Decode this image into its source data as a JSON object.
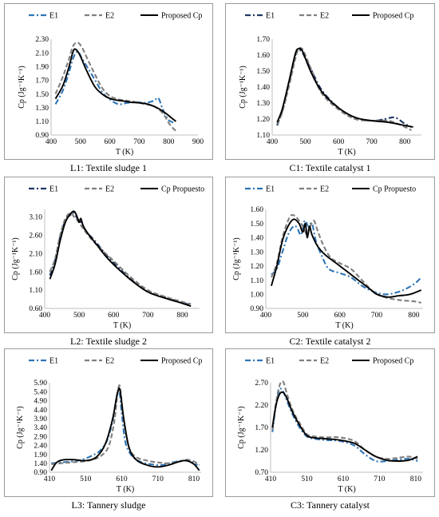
{
  "panels": [
    {
      "caption": "L1: Textile sludge 1",
      "chart_data": {
        "type": "line",
        "xlabel": "T (K)",
        "ylabel": "Cp (Jg⁻¹K⁻¹)",
        "xlim": [
          400,
          900
        ],
        "ylim": [
          0.9,
          2.3
        ],
        "xticks": [
          400,
          500,
          600,
          700,
          800,
          900
        ],
        "yticks": [
          0.9,
          1.1,
          1.3,
          1.5,
          1.7,
          1.9,
          2.1,
          2.3
        ],
        "yfmt": 2,
        "series": [
          {
            "name": "E1",
            "style": "dashdot",
            "color": "#2e75b6",
            "x": [
              415,
              440,
              460,
              475,
              490,
              505,
              525,
              550,
              575,
              600,
              630,
              660,
              690,
              720,
              750,
              765,
              780,
              800,
              820
            ],
            "y": [
              1.35,
              1.55,
              1.8,
              2.02,
              2.12,
              2.02,
              1.88,
              1.7,
              1.52,
              1.42,
              1.35,
              1.37,
              1.38,
              1.37,
              1.4,
              1.44,
              1.28,
              1.12,
              1.08
            ]
          },
          {
            "name": "E2",
            "style": "dashed",
            "color": "#7f7f7f",
            "x": [
              415,
              440,
              460,
              475,
              490,
              505,
              525,
              550,
              575,
              600,
              630,
              660,
              690,
              720,
              750,
              780,
              800,
              815,
              825
            ],
            "y": [
              1.5,
              1.75,
              2.0,
              2.2,
              2.25,
              2.18,
              2.0,
              1.78,
              1.58,
              1.47,
              1.42,
              1.4,
              1.38,
              1.35,
              1.32,
              1.22,
              1.08,
              1.0,
              0.96
            ]
          },
          {
            "name": "Proposed Cp",
            "style": "solid",
            "color": "#000000",
            "x": [
              415,
              440,
              460,
              475,
              485,
              500,
              520,
              550,
              580,
              610,
              640,
              670,
              700,
              730,
              760,
              790,
              810,
              825
            ],
            "y": [
              1.43,
              1.62,
              1.88,
              2.12,
              2.15,
              2.05,
              1.85,
              1.6,
              1.48,
              1.42,
              1.4,
              1.38,
              1.37,
              1.35,
              1.3,
              1.22,
              1.15,
              1.1
            ]
          }
        ]
      }
    },
    {
      "caption": "C1: Textile catalyst 1",
      "chart_data": {
        "type": "line",
        "xlabel": "T (K)",
        "ylabel": "Cp (Jg⁻¹K⁻¹)",
        "xlim": [
          400,
          850
        ],
        "ylim": [
          1.1,
          1.7
        ],
        "xticks": [
          400,
          500,
          600,
          700,
          800
        ],
        "yticks": [
          1.1,
          1.2,
          1.3,
          1.4,
          1.5,
          1.6,
          1.7
        ],
        "yfmt": 2,
        "series": [
          {
            "name": "E1",
            "style": "dashdot",
            "color": "#1f3864",
            "x": [
              415,
              430,
              450,
              470,
              480,
              490,
              500,
              520,
              550,
              600,
              650,
              700,
              740,
              770,
              800,
              820
            ],
            "y": [
              1.16,
              1.25,
              1.42,
              1.6,
              1.63,
              1.62,
              1.58,
              1.5,
              1.38,
              1.27,
              1.21,
              1.19,
              1.2,
              1.21,
              1.17,
              1.15
            ]
          },
          {
            "name": "E2",
            "style": "dashed",
            "color": "#7f7f7f",
            "x": [
              415,
              430,
              450,
              470,
              480,
              490,
              500,
              520,
              550,
              600,
              650,
              700,
              750,
              790,
              820
            ],
            "y": [
              1.17,
              1.24,
              1.4,
              1.58,
              1.64,
              1.64,
              1.6,
              1.5,
              1.36,
              1.26,
              1.2,
              1.19,
              1.19,
              1.16,
              1.13
            ]
          },
          {
            "name": "Proposed Cp",
            "style": "solid",
            "color": "#000000",
            "x": [
              415,
              430,
              450,
              470,
              480,
              490,
              500,
              520,
              550,
              600,
              650,
              700,
              750,
              800,
              825
            ],
            "y": [
              1.18,
              1.26,
              1.43,
              1.61,
              1.64,
              1.63,
              1.58,
              1.48,
              1.37,
              1.27,
              1.21,
              1.19,
              1.18,
              1.16,
              1.15
            ]
          }
        ]
      }
    },
    {
      "caption": "L2: Textile sludge 2",
      "chart_data": {
        "type": "line",
        "xlabel": "T (K)",
        "ylabel": "Cp (Jg⁻¹K⁻¹)",
        "xlim": [
          400,
          850
        ],
        "ylim": [
          0.6,
          3.3
        ],
        "xticks": [
          400,
          500,
          600,
          700,
          800
        ],
        "yticks": [
          0.6,
          1.1,
          1.6,
          2.1,
          2.6,
          3.1
        ],
        "yfmt": 2,
        "series": [
          {
            "name": "E1",
            "style": "dashdot",
            "color": "#1f3864",
            "x": [
              415,
              430,
              445,
              460,
              475,
              485,
              495,
              505,
              520,
              545,
              575,
              600,
              650,
              700,
              750,
              800,
              825
            ],
            "y": [
              1.5,
              1.9,
              2.55,
              3.0,
              3.15,
              3.2,
              3.05,
              2.95,
              2.7,
              2.45,
              2.1,
              1.85,
              1.4,
              1.05,
              0.9,
              0.75,
              0.7
            ]
          },
          {
            "name": "E2",
            "style": "dashed",
            "color": "#7f7f7f",
            "x": [
              415,
              430,
              445,
              460,
              475,
              485,
              495,
              510,
              530,
              560,
              600,
              650,
              700,
              750,
              800,
              825
            ],
            "y": [
              1.6,
              1.95,
              2.6,
              3.05,
              3.2,
              3.1,
              3.0,
              2.8,
              2.55,
              2.25,
              1.9,
              1.45,
              1.1,
              0.92,
              0.78,
              0.72
            ]
          },
          {
            "name": "Cp Propuesto",
            "style": "solid",
            "color": "#000000",
            "x": [
              415,
              430,
              445,
              460,
              475,
              485,
              492,
              500,
              505,
              512,
              525,
              550,
              575,
              600,
              650,
              700,
              750,
              800,
              825
            ],
            "y": [
              1.4,
              1.8,
              2.45,
              2.95,
              3.18,
              3.25,
              3.15,
              2.95,
              3.05,
              2.85,
              2.65,
              2.35,
              2.05,
              1.8,
              1.38,
              1.05,
              0.88,
              0.74,
              0.66
            ]
          }
        ]
      }
    },
    {
      "caption": "C2: Textile catalyst 2",
      "chart_data": {
        "type": "line",
        "xlabel": "T (K)",
        "ylabel": "Cp (Jg⁻¹K⁻¹)",
        "xlim": [
          400,
          825
        ],
        "ylim": [
          0.9,
          1.6
        ],
        "xticks": [
          400,
          500,
          600,
          700,
          800
        ],
        "yticks": [
          0.9,
          1.0,
          1.1,
          1.2,
          1.3,
          1.4,
          1.5,
          1.6
        ],
        "yfmt": 2,
        "series": [
          {
            "name": "E1",
            "style": "dashdot",
            "color": "#2e75b6",
            "x": [
              415,
              430,
              445,
              460,
              475,
              485,
              495,
              505,
              515,
              525,
              535,
              550,
              570,
              600,
              630,
              660,
              690,
              720,
              750,
              780,
              805,
              820
            ],
            "y": [
              1.14,
              1.18,
              1.3,
              1.42,
              1.48,
              1.47,
              1.42,
              1.52,
              1.48,
              1.5,
              1.38,
              1.28,
              1.18,
              1.15,
              1.12,
              1.06,
              1.02,
              1.0,
              1.01,
              1.04,
              1.08,
              1.12
            ]
          },
          {
            "name": "E2",
            "style": "dashed",
            "color": "#7f7f7f",
            "x": [
              415,
              430,
              445,
              460,
              470,
              480,
              490,
              500,
              512,
              520,
              530,
              540,
              555,
              575,
              600,
              630,
              660,
              690,
              720,
              760,
              800,
              820
            ],
            "y": [
              1.12,
              1.22,
              1.4,
              1.52,
              1.56,
              1.55,
              1.52,
              1.48,
              1.42,
              1.48,
              1.52,
              1.45,
              1.35,
              1.26,
              1.22,
              1.18,
              1.1,
              1.02,
              0.98,
              0.96,
              0.95,
              0.94
            ]
          },
          {
            "name": "Cp Propuesto",
            "style": "solid",
            "color": "#000000",
            "x": [
              415,
              430,
              445,
              460,
              475,
              490,
              500,
              507,
              512,
              518,
              525,
              540,
              560,
              590,
              620,
              650,
              680,
              700,
              730,
              760,
              790,
              820
            ],
            "y": [
              1.06,
              1.2,
              1.38,
              1.48,
              1.53,
              1.5,
              1.44,
              1.5,
              1.4,
              1.48,
              1.42,
              1.34,
              1.28,
              1.22,
              1.16,
              1.1,
              1.04,
              1.0,
              0.98,
              0.99,
              1.0,
              1.03
            ]
          }
        ]
      }
    },
    {
      "caption": "L3: Tannery sludge",
      "chart_data": {
        "type": "line",
        "xlabel": "T (K)",
        "ylabel": "Cp (Jg⁻¹K⁻¹)",
        "xlim": [
          410,
          830
        ],
        "ylim": [
          0.9,
          5.9
        ],
        "xticks": [
          410,
          510,
          610,
          710,
          810
        ],
        "yticks": [
          0.9,
          1.9,
          2.9,
          3.9,
          4.9,
          5.9
        ],
        "ytickextra": [
          1.4,
          2.4,
          3.4,
          4.4,
          5.4
        ],
        "yfmt": 2,
        "series": [
          {
            "name": "E1",
            "style": "dashdot",
            "color": "#2e75b6",
            "x": [
              415,
              440,
              470,
              500,
              530,
              550,
              570,
              585,
              595,
              603,
              610,
              620,
              635,
              660,
              690,
              720,
              750,
              780,
              800,
              820
            ],
            "y": [
              1.4,
              1.45,
              1.5,
              1.6,
              1.85,
              2.1,
              2.7,
              3.8,
              5.0,
              5.5,
              4.2,
              2.6,
              1.9,
              1.5,
              1.35,
              1.3,
              1.45,
              1.55,
              1.5,
              1.3
            ]
          },
          {
            "name": "E2",
            "style": "dashed",
            "color": "#7f7f7f",
            "x": [
              415,
              440,
              470,
              500,
              530,
              555,
              575,
              590,
              598,
              605,
              615,
              630,
              650,
              680,
              710,
              740,
              770,
              790,
              810,
              825
            ],
            "y": [
              1.35,
              1.4,
              1.45,
              1.5,
              1.6,
              1.85,
              2.4,
              3.8,
              5.2,
              5.7,
              3.9,
              2.3,
              1.75,
              1.55,
              1.45,
              1.4,
              1.5,
              1.6,
              1.5,
              1.3
            ]
          },
          {
            "name": "Proposed Cp",
            "style": "solid",
            "color": "#000000",
            "x": [
              415,
              430,
              450,
              480,
              510,
              540,
              565,
              585,
              598,
              605,
              615,
              630,
              650,
              680,
              710,
              740,
              770,
              790,
              810,
              825
            ],
            "y": [
              1.0,
              1.45,
              1.6,
              1.6,
              1.55,
              1.75,
              2.5,
              3.9,
              5.3,
              5.5,
              4.0,
              2.3,
              1.6,
              1.3,
              1.2,
              1.3,
              1.5,
              1.55,
              1.35,
              1.0
            ]
          }
        ]
      }
    },
    {
      "caption": "C3: Tannery catalyst",
      "chart_data": {
        "type": "line",
        "xlabel": "T (K)",
        "ylabel": "Cp (Jg⁻¹K⁻¹)",
        "xlim": [
          410,
          830
        ],
        "ylim": [
          0.7,
          2.7
        ],
        "xticks": [
          410,
          510,
          610,
          710,
          810
        ],
        "yticks": [
          0.7,
          1.2,
          1.7,
          2.2,
          2.7
        ],
        "yfmt": 2,
        "series": [
          {
            "name": "E1",
            "style": "dashdot",
            "color": "#2e75b6",
            "x": [
              415,
              425,
              435,
              445,
              455,
              470,
              490,
              510,
              530,
              560,
              600,
              640,
              670,
              700,
              730,
              760,
              790,
              815
            ],
            "y": [
              1.6,
              2.2,
              2.55,
              2.5,
              2.3,
              2.0,
              1.7,
              1.5,
              1.45,
              1.42,
              1.4,
              1.3,
              1.1,
              0.95,
              0.95,
              0.98,
              1.0,
              0.95
            ]
          },
          {
            "name": "E2",
            "style": "dashed",
            "color": "#7f7f7f",
            "x": [
              415,
              425,
              435,
              445,
              455,
              470,
              490,
              510,
              530,
              560,
              600,
              640,
              670,
              700,
              730,
              760,
              790,
              815
            ],
            "y": [
              1.65,
              2.25,
              2.65,
              2.72,
              2.45,
              2.1,
              1.8,
              1.55,
              1.5,
              1.48,
              1.48,
              1.4,
              1.2,
              1.05,
              1.0,
              1.02,
              1.05,
              1.0
            ]
          },
          {
            "name": "Proposed Cp",
            "style": "solid",
            "color": "#000000",
            "x": [
              415,
              425,
              435,
              445,
              455,
              470,
              490,
              510,
              530,
              560,
              600,
              640,
              670,
              700,
              730,
              760,
              790,
              815
            ],
            "y": [
              1.7,
              2.2,
              2.45,
              2.48,
              2.35,
              2.05,
              1.75,
              1.52,
              1.47,
              1.45,
              1.42,
              1.35,
              1.2,
              1.05,
              0.97,
              0.95,
              0.97,
              1.05
            ]
          }
        ]
      }
    }
  ]
}
